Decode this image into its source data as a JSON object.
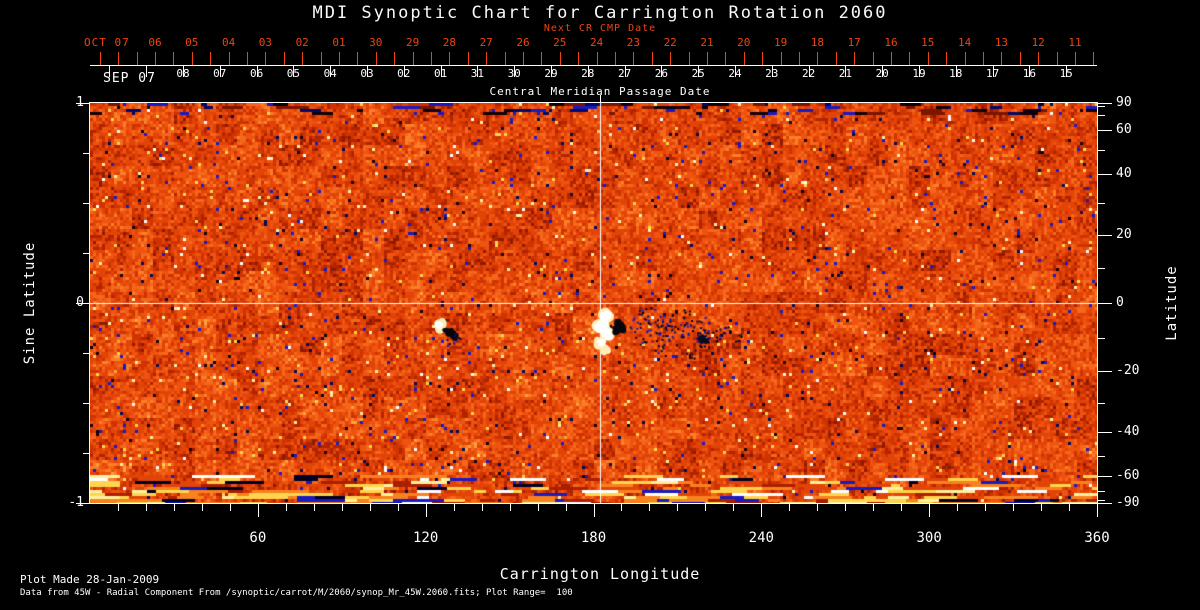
{
  "title": "MDI Synoptic Chart for Carrington Rotation 2060",
  "axes": {
    "next_cr": {
      "label": "Next CR CMP Date",
      "month": "OCT 07",
      "days": [
        "06",
        "05",
        "04",
        "03",
        "02",
        "01",
        "30",
        "29",
        "28",
        "27",
        "26",
        "25",
        "24",
        "23",
        "22",
        "21",
        "20",
        "19",
        "18",
        "17",
        "16",
        "15",
        "14",
        "13",
        "12",
        "11"
      ]
    },
    "cmp": {
      "label": "Central Meridian Passage Date",
      "month": "SEP 07",
      "days": [
        "08",
        "07",
        "06",
        "05",
        "04",
        "03",
        "02",
        "01",
        "31",
        "30",
        "29",
        "28",
        "27",
        "26",
        "25",
        "24",
        "23",
        "22",
        "21",
        "20",
        "19",
        "18",
        "17",
        "16",
        "15"
      ]
    },
    "left": {
      "label": "Sine Latitude",
      "ticks": [
        "1",
        "0",
        "-1"
      ]
    },
    "right": {
      "label": "Latitude",
      "ticks": [
        "90",
        "60",
        "40",
        "20",
        "0",
        "-20",
        "-40",
        "-60",
        "-90"
      ]
    },
    "bottom": {
      "label": "Carrington Longitude",
      "ticks": [
        "60",
        "120",
        "180",
        "240",
        "300",
        "360"
      ]
    }
  },
  "footer": {
    "line1": "Plot Made 28-Jan-2009",
    "line2": "Data from 45W - Radial Component From /synoptic/carrot/M/2060/synop_Mr_45W.2060.fits; Plot Range=  100"
  },
  "colors": {
    "background": "#000000",
    "axis_text": "#ffffff",
    "next_cr_axis": "#ee4411",
    "map_base_orange": "#e64508",
    "map_dark_red": "#8f1a00",
    "map_yellow": "#ffd44e",
    "map_blue": "#1a1abf",
    "crosshair": "#ffffff"
  },
  "chart_data": {
    "type": "heatmap",
    "title": "MDI Synoptic Chart for Carrington Rotation 2060",
    "xlabel": "Carrington Longitude",
    "x_range": [
      0,
      360
    ],
    "x_major_ticks": [
      60,
      120,
      180,
      240,
      300,
      360
    ],
    "x_minor_tick_step": 10,
    "y_left_label": "Sine Latitude",
    "y_left_range": [
      -1,
      1
    ],
    "y_left_major_ticks": [
      1,
      0,
      -1
    ],
    "y_right_label": "Latitude",
    "y_right_labeled_ticks_deg": [
      90,
      60,
      40,
      20,
      0,
      -20,
      -40,
      -60,
      -90
    ],
    "y_right_minor_tick_step_deg": 10,
    "top_scale_cmp": {
      "label": "Central Meridian Passage Date",
      "month_year": "SEP 07",
      "days": [
        "08",
        "07",
        "06",
        "05",
        "04",
        "03",
        "02",
        "01",
        "31",
        "30",
        "29",
        "28",
        "27",
        "26",
        "25",
        "24",
        "23",
        "22",
        "21",
        "20",
        "19",
        "18",
        "17",
        "16",
        "15"
      ]
    },
    "top_scale_next_cr": {
      "label": "Next CR CMP Date",
      "month_year": "OCT 07",
      "days": [
        "06",
        "05",
        "04",
        "03",
        "02",
        "01",
        "30",
        "29",
        "28",
        "27",
        "26",
        "25",
        "24",
        "23",
        "22",
        "21",
        "20",
        "19",
        "18",
        "17",
        "16",
        "15",
        "14",
        "13",
        "12",
        "11"
      ]
    },
    "plot_range": 100,
    "colormap_order": [
      "blue",
      "black",
      "dark red",
      "red",
      "orange",
      "light orange",
      "yellow",
      "white"
    ],
    "gridlines": {
      "vertical_at_longitude": 182,
      "horizontal_at_sine_latitude": 0
    },
    "notable_features": [
      {
        "type": "active-region",
        "longitude_deg": 127,
        "sine_latitude": -0.13,
        "description": "small white plage with dark sunspot"
      },
      {
        "type": "active-region",
        "longitude_deg": 185,
        "sine_latitude": -0.11,
        "description": "bright white plage beside strong dark sunspot group"
      },
      {
        "type": "dark-speckle-field",
        "longitude_deg": [
          190,
          235
        ],
        "sine_latitude": [
          -0.3,
          0.05
        ],
        "description": "scattered dark negative-polarity speckles"
      },
      {
        "type": "noise-band",
        "location": "south edge",
        "description": "streaky yellow/white/blue polar noise band"
      },
      {
        "type": "noise-band",
        "location": "north edge",
        "description": "thin dark and blue horizontal streaks"
      }
    ]
  }
}
